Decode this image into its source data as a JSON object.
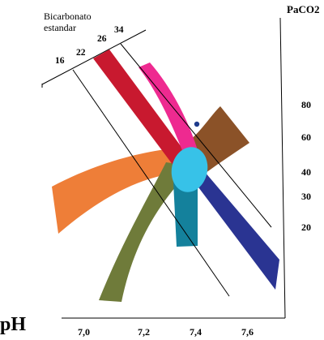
{
  "top_label": {
    "line1": "Bicarbonato",
    "line2": "estandar"
  },
  "bicarbonate_ticks": [
    "16",
    "22",
    "26",
    "34"
  ],
  "right_axis_title": "PaCO2",
  "paco2_ticks": [
    "80",
    "60",
    "40",
    "30",
    "20"
  ],
  "bottom_axis_title": "pH",
  "ph_ticks": [
    "7,0",
    "7,2",
    "7,4",
    "7,6"
  ],
  "colors": {
    "orange": "#ee7e38",
    "olive": "#6f7b3a",
    "crimson": "#c8192f",
    "magenta": "#ee2a90",
    "brown": "#8b5228",
    "navy": "#2a3492",
    "teal": "#14819c",
    "cyan": "#37c2e8",
    "dot": "#1f3c8c",
    "line": "#000000"
  }
}
